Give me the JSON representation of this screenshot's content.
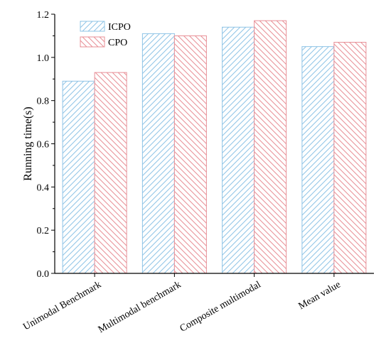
{
  "chart_data": {
    "type": "bar",
    "title": "",
    "xlabel": "",
    "ylabel": "Running time(s)",
    "ylim": [
      0,
      1.2
    ],
    "yticks": [
      0.0,
      0.2,
      0.4,
      0.6,
      0.8,
      1.0,
      1.2
    ],
    "ytick_labels": [
      "0.0",
      "0.2",
      "0.4",
      "0.6",
      "0.8",
      "1.0",
      "1.2"
    ],
    "categories": [
      "Unimodal Benchmark",
      "Multimodal benchmark",
      "Composite multimodal",
      "Mean value"
    ],
    "series": [
      {
        "name": "ICPO",
        "values": [
          0.89,
          1.11,
          1.14,
          1.05
        ],
        "color": "#8fc4e6"
      },
      {
        "name": "CPO",
        "values": [
          0.93,
          1.1,
          1.17,
          1.07
        ],
        "color": "#e88f96"
      }
    ],
    "pattern": "diagonal-hatch",
    "legend_position": "top-left",
    "grid": false
  }
}
